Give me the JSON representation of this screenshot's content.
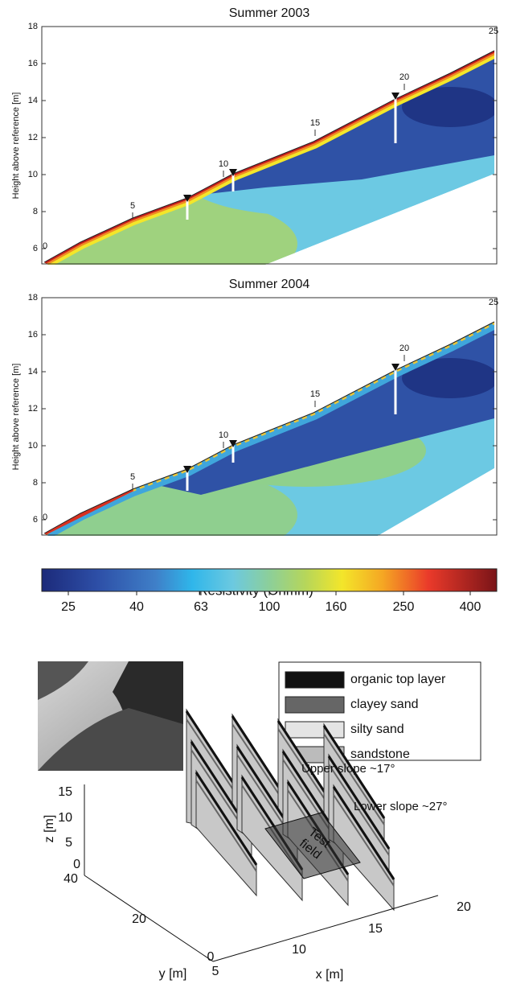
{
  "panels": [
    {
      "title": "Summer 2003",
      "y_label": "Height above reference [m]",
      "y_ticks": [
        "18",
        "16",
        "14",
        "12",
        "10",
        "8",
        "6"
      ],
      "electrodes": [
        "0",
        "5",
        "10",
        "15",
        "20",
        "25"
      ]
    },
    {
      "title": "Summer 2004",
      "y_label": "Height above reference [m]",
      "y_ticks": [
        "18",
        "16",
        "14",
        "12",
        "10",
        "8",
        "6"
      ],
      "electrodes": [
        "0",
        "5",
        "10",
        "15",
        "20",
        "25"
      ]
    }
  ],
  "colorbar": {
    "title": "Resistivity (Ohmm)",
    "ticks": [
      "25",
      "40",
      "63",
      "100",
      "160",
      "250",
      "400"
    ]
  },
  "legend": [
    "organic top layer",
    "clayey sand",
    "silty sand",
    "sandstone"
  ],
  "annotations": {
    "upper": "Upper slope ~17°",
    "lower": "Lower slope ~27°",
    "test_field": [
      "Test",
      "field"
    ]
  },
  "axes3d": {
    "z_label": "z [m]",
    "z_ticks": [
      "15",
      "10",
      "5",
      "0"
    ],
    "y_label": "y [m]",
    "y_ticks": [
      "40",
      "20",
      "0"
    ],
    "x_label": "x [m]",
    "x_ticks": [
      "5",
      "10",
      "15",
      "20"
    ]
  }
}
